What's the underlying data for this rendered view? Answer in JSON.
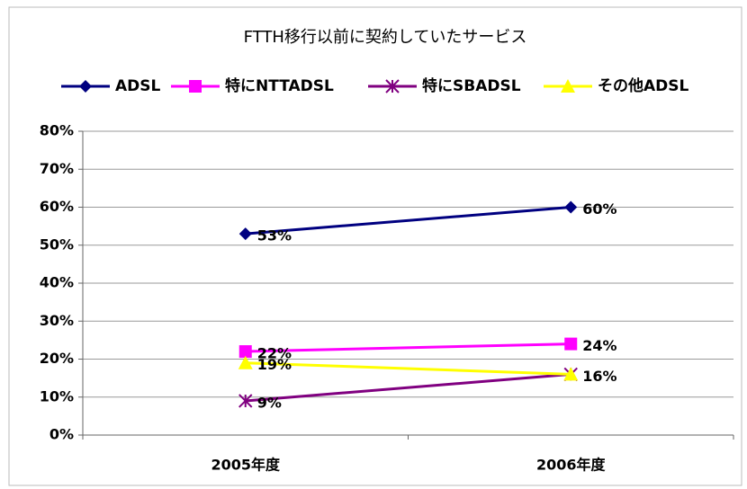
{
  "chart_data": {
    "type": "line",
    "title": "FTTH移行以前に契約していたサービス",
    "categories": [
      "2005年度",
      "2006年度"
    ],
    "series": [
      {
        "name": "ADSL",
        "color": "#000080",
        "marker": "diamond",
        "values": [
          53,
          60
        ],
        "value_labels": [
          "53%",
          "60%"
        ]
      },
      {
        "name": "特にNTTADSL",
        "color": "#ff00ff",
        "marker": "square",
        "values": [
          22,
          24
        ],
        "value_labels": [
          "22%",
          "24%"
        ]
      },
      {
        "name": "特にSBADSL",
        "color": "#800080",
        "marker": "star",
        "values": [
          9,
          16
        ],
        "value_labels": [
          "9%",
          "16%"
        ]
      },
      {
        "name": "その他ADSL",
        "color": "#ffff00",
        "marker": "triangle",
        "values": [
          19,
          16
        ],
        "value_labels": [
          "19%",
          null
        ]
      }
    ],
    "ylim": [
      0,
      80
    ],
    "yticks": [
      {
        "value": 0,
        "label": "0%"
      },
      {
        "value": 10,
        "label": "10%"
      },
      {
        "value": 20,
        "label": "20%"
      },
      {
        "value": 30,
        "label": "30%"
      },
      {
        "value": 40,
        "label": "40%"
      },
      {
        "value": 50,
        "label": "50%"
      },
      {
        "value": 60,
        "label": "60%"
      },
      {
        "value": 70,
        "label": "70%"
      },
      {
        "value": 80,
        "label": "80%"
      }
    ],
    "grid": true,
    "legend": "top"
  }
}
